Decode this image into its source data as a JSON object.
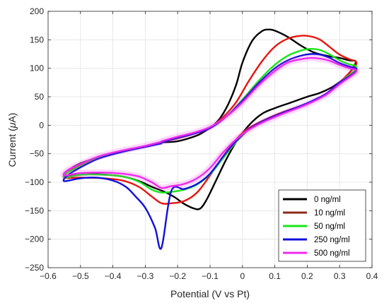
{
  "chart_data": {
    "type": "line",
    "xlabel": "Potential (V vs Pt)",
    "ylabel_prefix": "Current (",
    "ylabel_mu": "μ",
    "ylabel_suffix": "A)",
    "xlim": [
      -0.6,
      0.4
    ],
    "ylim": [
      -250,
      200
    ],
    "xticks": [
      -0.6,
      -0.5,
      -0.4,
      -0.3,
      -0.2,
      -0.1,
      0,
      0.1,
      0.2,
      0.3,
      0.4
    ],
    "yticks": [
      -250,
      -200,
      -150,
      -100,
      -50,
      0,
      50,
      100,
      150,
      200
    ],
    "xtick_labels": [
      "−0.6",
      "−0.5",
      "−0.4",
      "−0.3",
      "−0.2",
      "−0.1",
      "0",
      "0.1",
      "0.2",
      "0.3",
      "0.4"
    ],
    "ytick_labels": [
      "−250",
      "−200",
      "−150",
      "−100",
      "−50",
      "0",
      "50",
      "100",
      "150",
      "200"
    ],
    "grid": true,
    "legend_position": "bottom-right",
    "series": [
      {
        "name": "0 ng/ml",
        "color": "#000000",
        "points": [
          [
            -0.25,
            -30
          ],
          [
            -0.2,
            -28
          ],
          [
            -0.15,
            -20
          ],
          [
            -0.12,
            -12
          ],
          [
            -0.08,
            5
          ],
          [
            -0.05,
            30
          ],
          [
            -0.02,
            70
          ],
          [
            0.0,
            110
          ],
          [
            0.03,
            148
          ],
          [
            0.06,
            165
          ],
          [
            0.08,
            168
          ],
          [
            0.1,
            166
          ],
          [
            0.14,
            155
          ],
          [
            0.18,
            140
          ],
          [
            0.22,
            128
          ],
          [
            0.26,
            122
          ],
          [
            0.3,
            118
          ],
          [
            0.33,
            114
          ],
          [
            0.35,
            112
          ],
          [
            0.34,
            100
          ],
          [
            0.32,
            85
          ],
          [
            0.28,
            68
          ],
          [
            0.24,
            57
          ],
          [
            0.2,
            50
          ],
          [
            0.15,
            40
          ],
          [
            0.1,
            30
          ],
          [
            0.06,
            20
          ],
          [
            0.02,
            0
          ],
          [
            -0.02,
            -30
          ],
          [
            -0.05,
            -60
          ],
          [
            -0.08,
            -95
          ],
          [
            -0.11,
            -130
          ],
          [
            -0.13,
            -146
          ],
          [
            -0.15,
            -146
          ],
          [
            -0.18,
            -138
          ],
          [
            -0.21,
            -126
          ],
          [
            -0.24,
            -117
          ],
          [
            -0.28,
            -108
          ],
          [
            -0.32,
            -98
          ],
          [
            -0.37,
            -90
          ],
          [
            -0.45,
            -86
          ],
          [
            -0.52,
            -88
          ],
          [
            -0.55,
            -92
          ],
          [
            -0.54,
            -80
          ],
          [
            -0.5,
            -67
          ],
          [
            -0.45,
            -57
          ],
          [
            -0.4,
            -49
          ],
          [
            -0.35,
            -42
          ],
          [
            -0.3,
            -37
          ],
          [
            -0.25,
            -32
          ]
        ]
      },
      {
        "name": "10 ng/ml",
        "color": "#e8140f",
        "highlight": "#8c2a18",
        "points": [
          [
            -0.25,
            -29
          ],
          [
            -0.2,
            -23
          ],
          [
            -0.15,
            -15
          ],
          [
            -0.1,
            -4
          ],
          [
            -0.06,
            14
          ],
          [
            -0.02,
            40
          ],
          [
            0.02,
            78
          ],
          [
            0.06,
            112
          ],
          [
            0.1,
            138
          ],
          [
            0.14,
            152
          ],
          [
            0.18,
            157
          ],
          [
            0.21,
            156
          ],
          [
            0.24,
            150
          ],
          [
            0.27,
            137
          ],
          [
            0.3,
            124
          ],
          [
            0.33,
            116
          ],
          [
            0.35,
            112
          ],
          [
            0.35,
            105
          ],
          [
            0.33,
            92
          ],
          [
            0.3,
            75
          ],
          [
            0.26,
            55
          ],
          [
            0.22,
            43
          ],
          [
            0.18,
            34
          ],
          [
            0.12,
            22
          ],
          [
            0.07,
            10
          ],
          [
            0.02,
            -5
          ],
          [
            -0.02,
            -25
          ],
          [
            -0.06,
            -55
          ],
          [
            -0.1,
            -88
          ],
          [
            -0.14,
            -118
          ],
          [
            -0.18,
            -133
          ],
          [
            -0.22,
            -137
          ],
          [
            -0.25,
            -137
          ],
          [
            -0.28,
            -125
          ],
          [
            -0.32,
            -108
          ],
          [
            -0.37,
            -97
          ],
          [
            -0.43,
            -93
          ],
          [
            -0.5,
            -92
          ],
          [
            -0.55,
            -92
          ],
          [
            -0.54,
            -82
          ],
          [
            -0.5,
            -70
          ],
          [
            -0.45,
            -58
          ],
          [
            -0.4,
            -49
          ],
          [
            -0.35,
            -43
          ],
          [
            -0.3,
            -37
          ],
          [
            -0.25,
            -31
          ]
        ]
      },
      {
        "name": "50 ng/ml",
        "color": "#19e619",
        "points": [
          [
            -0.25,
            -30
          ],
          [
            -0.2,
            -22
          ],
          [
            -0.15,
            -15
          ],
          [
            -0.1,
            -5
          ],
          [
            -0.05,
            15
          ],
          [
            0.0,
            45
          ],
          [
            0.05,
            78
          ],
          [
            0.1,
            106
          ],
          [
            0.14,
            122
          ],
          [
            0.18,
            131
          ],
          [
            0.21,
            134
          ],
          [
            0.24,
            132
          ],
          [
            0.27,
            124
          ],
          [
            0.3,
            114
          ],
          [
            0.33,
            107
          ],
          [
            0.35,
            104
          ],
          [
            0.35,
            98
          ],
          [
            0.33,
            88
          ],
          [
            0.3,
            75
          ],
          [
            0.26,
            55
          ],
          [
            0.22,
            42
          ],
          [
            0.18,
            33
          ],
          [
            0.12,
            20
          ],
          [
            0.07,
            8
          ],
          [
            0.02,
            -8
          ],
          [
            -0.02,
            -30
          ],
          [
            -0.06,
            -58
          ],
          [
            -0.1,
            -86
          ],
          [
            -0.14,
            -104
          ],
          [
            -0.18,
            -113
          ],
          [
            -0.22,
            -117
          ],
          [
            -0.25,
            -118
          ],
          [
            -0.28,
            -113
          ],
          [
            -0.32,
            -99
          ],
          [
            -0.37,
            -90
          ],
          [
            -0.43,
            -87
          ],
          [
            -0.5,
            -87
          ],
          [
            -0.55,
            -92
          ],
          [
            -0.54,
            -83
          ],
          [
            -0.5,
            -72
          ],
          [
            -0.45,
            -59
          ],
          [
            -0.4,
            -50
          ],
          [
            -0.35,
            -43
          ],
          [
            -0.3,
            -37
          ],
          [
            -0.25,
            -31
          ]
        ]
      },
      {
        "name": "250 ng/ml",
        "color": "#1010dc",
        "points": [
          [
            -0.25,
            -30
          ],
          [
            -0.2,
            -22
          ],
          [
            -0.15,
            -15
          ],
          [
            -0.1,
            -5
          ],
          [
            -0.05,
            15
          ],
          [
            0.0,
            43
          ],
          [
            0.05,
            74
          ],
          [
            0.1,
            100
          ],
          [
            0.14,
            114
          ],
          [
            0.18,
            122
          ],
          [
            0.21,
            125
          ],
          [
            0.24,
            124
          ],
          [
            0.27,
            118
          ],
          [
            0.3,
            109
          ],
          [
            0.33,
            103
          ],
          [
            0.35,
            100
          ],
          [
            0.35,
            95
          ],
          [
            0.33,
            86
          ],
          [
            0.3,
            75
          ],
          [
            0.26,
            56
          ],
          [
            0.22,
            44
          ],
          [
            0.18,
            34
          ],
          [
            0.12,
            21
          ],
          [
            0.07,
            9
          ],
          [
            0.02,
            -7
          ],
          [
            -0.02,
            -28
          ],
          [
            -0.06,
            -55
          ],
          [
            -0.1,
            -85
          ],
          [
            -0.14,
            -103
          ],
          [
            -0.18,
            -112
          ],
          [
            -0.22,
            -116
          ],
          [
            -0.25,
            -215
          ],
          [
            -0.27,
            -180
          ],
          [
            -0.3,
            -145
          ],
          [
            -0.33,
            -125
          ],
          [
            -0.36,
            -108
          ],
          [
            -0.4,
            -97
          ],
          [
            -0.45,
            -92
          ],
          [
            -0.5,
            -93
          ],
          [
            -0.55,
            -98
          ],
          [
            -0.54,
            -88
          ],
          [
            -0.5,
            -74
          ],
          [
            -0.45,
            -60
          ],
          [
            -0.4,
            -51
          ],
          [
            -0.35,
            -44
          ],
          [
            -0.3,
            -38
          ],
          [
            -0.25,
            -32
          ]
        ]
      },
      {
        "name": "500 ng/ml",
        "color": "#ee2bee",
        "points": [
          [
            -0.25,
            -28
          ],
          [
            -0.2,
            -20
          ],
          [
            -0.15,
            -13
          ],
          [
            -0.1,
            -3
          ],
          [
            -0.05,
            15
          ],
          [
            0.0,
            40
          ],
          [
            0.05,
            70
          ],
          [
            0.1,
            95
          ],
          [
            0.14,
            110
          ],
          [
            0.18,
            116
          ],
          [
            0.21,
            118
          ],
          [
            0.24,
            117
          ],
          [
            0.27,
            113
          ],
          [
            0.3,
            106
          ],
          [
            0.33,
            100
          ],
          [
            0.35,
            97
          ],
          [
            0.35,
            93
          ],
          [
            0.33,
            84
          ],
          [
            0.3,
            72
          ],
          [
            0.26,
            54
          ],
          [
            0.22,
            42
          ],
          [
            0.18,
            32
          ],
          [
            0.12,
            19
          ],
          [
            0.07,
            7
          ],
          [
            0.02,
            -8
          ],
          [
            -0.02,
            -25
          ],
          [
            -0.06,
            -48
          ],
          [
            -0.1,
            -75
          ],
          [
            -0.14,
            -93
          ],
          [
            -0.18,
            -103
          ],
          [
            -0.22,
            -107
          ],
          [
            -0.25,
            -110
          ],
          [
            -0.28,
            -100
          ],
          [
            -0.32,
            -90
          ],
          [
            -0.37,
            -85
          ],
          [
            -0.43,
            -83
          ],
          [
            -0.5,
            -84
          ],
          [
            -0.55,
            -88
          ],
          [
            -0.54,
            -79
          ],
          [
            -0.5,
            -68
          ],
          [
            -0.45,
            -56
          ],
          [
            -0.4,
            -48
          ],
          [
            -0.35,
            -42
          ],
          [
            -0.3,
            -36
          ],
          [
            -0.25,
            -29
          ]
        ]
      }
    ]
  }
}
